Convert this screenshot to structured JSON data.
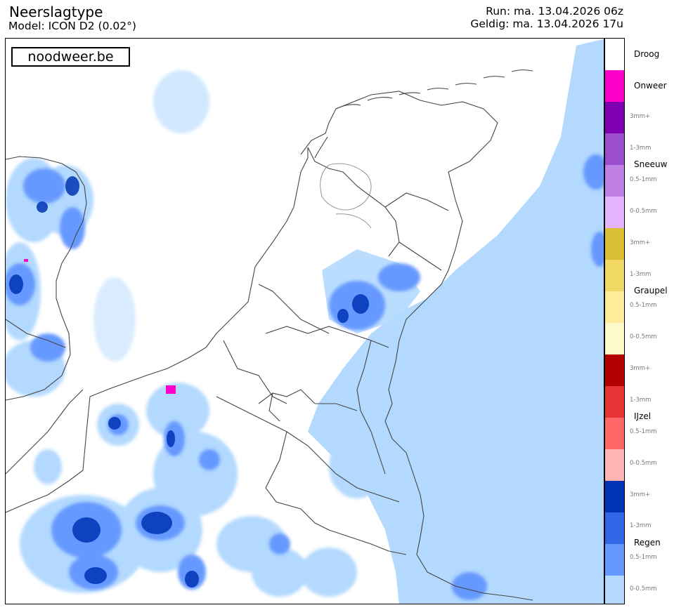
{
  "header": {
    "title": "Neerslagtype",
    "model": "Model: ICON D2 (0.02°)",
    "run": "Run: ma. 13.04.2026 06z",
    "valid": "Geldig: ma. 13.04.2026 17u"
  },
  "brand": {
    "label": "noodweer.be"
  },
  "legend": {
    "categories": [
      {
        "key": "dry",
        "label": "Droog",
        "levels": [
          {
            "label": "",
            "color": "#ffffff"
          }
        ]
      },
      {
        "key": "thunder",
        "label": "Onweer",
        "levels": [
          {
            "label": "",
            "color": "#ff00cc"
          }
        ]
      },
      {
        "key": "snow",
        "label": "Sneeuw",
        "levels": [
          {
            "label": "3mm+",
            "color": "#8000b3"
          },
          {
            "label": "1-3mm",
            "color": "#9a4dcc"
          },
          {
            "label": "0.5-1mm",
            "color": "#bf80e6"
          },
          {
            "label": "0-0.5mm",
            "color": "#e6b3ff"
          }
        ]
      },
      {
        "key": "graupel",
        "label": "Graupel",
        "levels": [
          {
            "label": "3mm+",
            "color": "#d9bf33"
          },
          {
            "label": "1-3mm",
            "color": "#f2d966"
          },
          {
            "label": "0.5-1mm",
            "color": "#ffeb99"
          },
          {
            "label": "0-0.5mm",
            "color": "#fffacc"
          }
        ]
      },
      {
        "key": "freezing",
        "label": "IJzel",
        "levels": [
          {
            "label": "3mm+",
            "color": "#b30000"
          },
          {
            "label": "1-3mm",
            "color": "#e63333"
          },
          {
            "label": "0.5-1mm",
            "color": "#ff6666"
          },
          {
            "label": "0-0.5mm",
            "color": "#ffb3b3"
          }
        ]
      },
      {
        "key": "rain",
        "label": "Regen",
        "levels": [
          {
            "label": "3mm+",
            "color": "#0033b3"
          },
          {
            "label": "1-3mm",
            "color": "#3366e6"
          },
          {
            "label": "0.5-1mm",
            "color": "#6699ff"
          },
          {
            "label": "0-0.5mm",
            "color": "#b3d9ff"
          }
        ]
      }
    ]
  }
}
